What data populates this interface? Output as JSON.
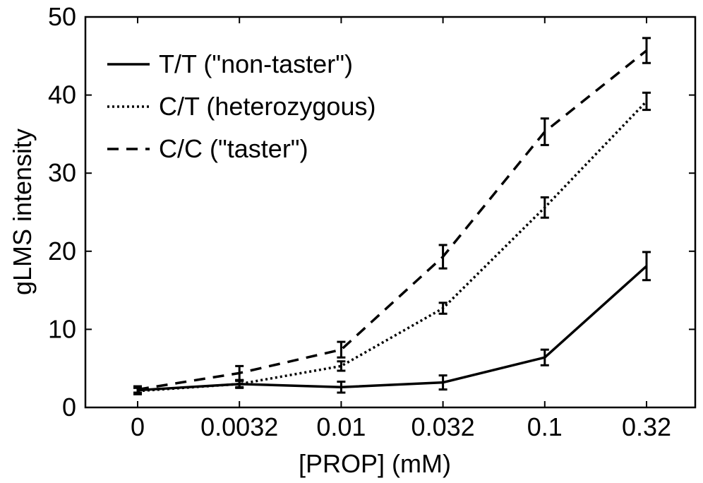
{
  "chart_data": {
    "type": "line",
    "title": "",
    "xlabel": "[PROP] (mM)",
    "ylabel": "gLMS intensity",
    "categories": [
      "0",
      "0.0032",
      "0.01",
      "0.032",
      "0.1",
      "0.32"
    ],
    "ylim": [
      0,
      50
    ],
    "yticks": [
      "0",
      "10",
      "20",
      "30",
      "40",
      "50"
    ],
    "grid": false,
    "legend_position": "top-left",
    "series": [
      {
        "name": "T/T (\"non-taster\")",
        "line_style": "solid",
        "color": "#000000",
        "values": [
          2.2,
          3.0,
          2.6,
          3.2,
          6.4,
          18.1
        ],
        "errors": [
          0.5,
          0.5,
          0.7,
          0.9,
          1.0,
          1.8
        ]
      },
      {
        "name": "C/T (heterozygous)",
        "line_style": "dotted",
        "color": "#000000",
        "values": [
          2.1,
          3.0,
          5.3,
          12.7,
          25.6,
          39.2
        ],
        "errors": [
          0.4,
          0.4,
          0.6,
          0.7,
          1.3,
          1.1
        ]
      },
      {
        "name": "C/C (\"taster\")",
        "line_style": "dashed",
        "color": "#000000",
        "values": [
          2.3,
          4.4,
          7.4,
          19.3,
          35.3,
          45.7
        ],
        "errors": [
          0.4,
          0.9,
          1.0,
          1.5,
          1.7,
          1.6
        ]
      }
    ]
  }
}
